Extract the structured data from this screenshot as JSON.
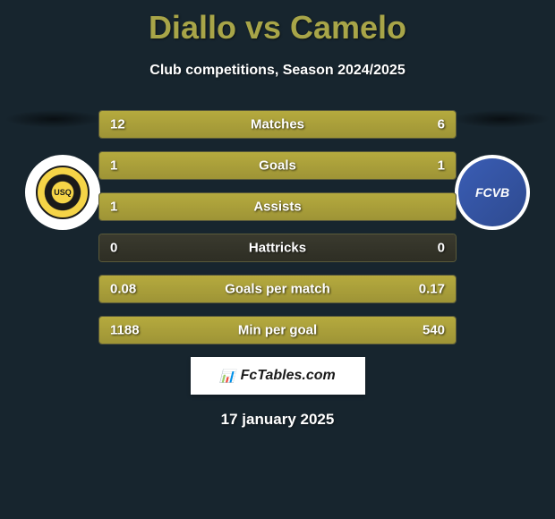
{
  "title": "Diallo vs Camelo",
  "subtitle": "Club competitions, Season 2024/2025",
  "date": "17 january 2025",
  "branding_text": "FcTables.com",
  "team_left": {
    "name": "USQ",
    "logo_bg": "#ffffff"
  },
  "team_right": {
    "name": "FCVB",
    "logo_bg": "#3a5db5"
  },
  "colors": {
    "background": "#17252e",
    "title": "#a8a548",
    "text": "#ffffff",
    "bar_fill": "#b5aa3e",
    "bar_empty": "#3a3a2e",
    "branding_bg": "#ffffff",
    "branding_text": "#1a1a1a"
  },
  "stats": [
    {
      "label": "Matches",
      "left_value": "12",
      "right_value": "6",
      "left_pct": 66.7,
      "right_pct": 33.3
    },
    {
      "label": "Goals",
      "left_value": "1",
      "right_value": "1",
      "left_pct": 50,
      "right_pct": 50
    },
    {
      "label": "Assists",
      "left_value": "1",
      "right_value": "",
      "left_pct": 100,
      "right_pct": 0
    },
    {
      "label": "Hattricks",
      "left_value": "0",
      "right_value": "0",
      "left_pct": 0,
      "right_pct": 0
    },
    {
      "label": "Goals per match",
      "left_value": "0.08",
      "right_value": "0.17",
      "left_pct": 32,
      "right_pct": 68
    },
    {
      "label": "Min per goal",
      "left_value": "1188",
      "right_value": "540",
      "left_pct": 68.8,
      "right_pct": 31.2
    }
  ]
}
